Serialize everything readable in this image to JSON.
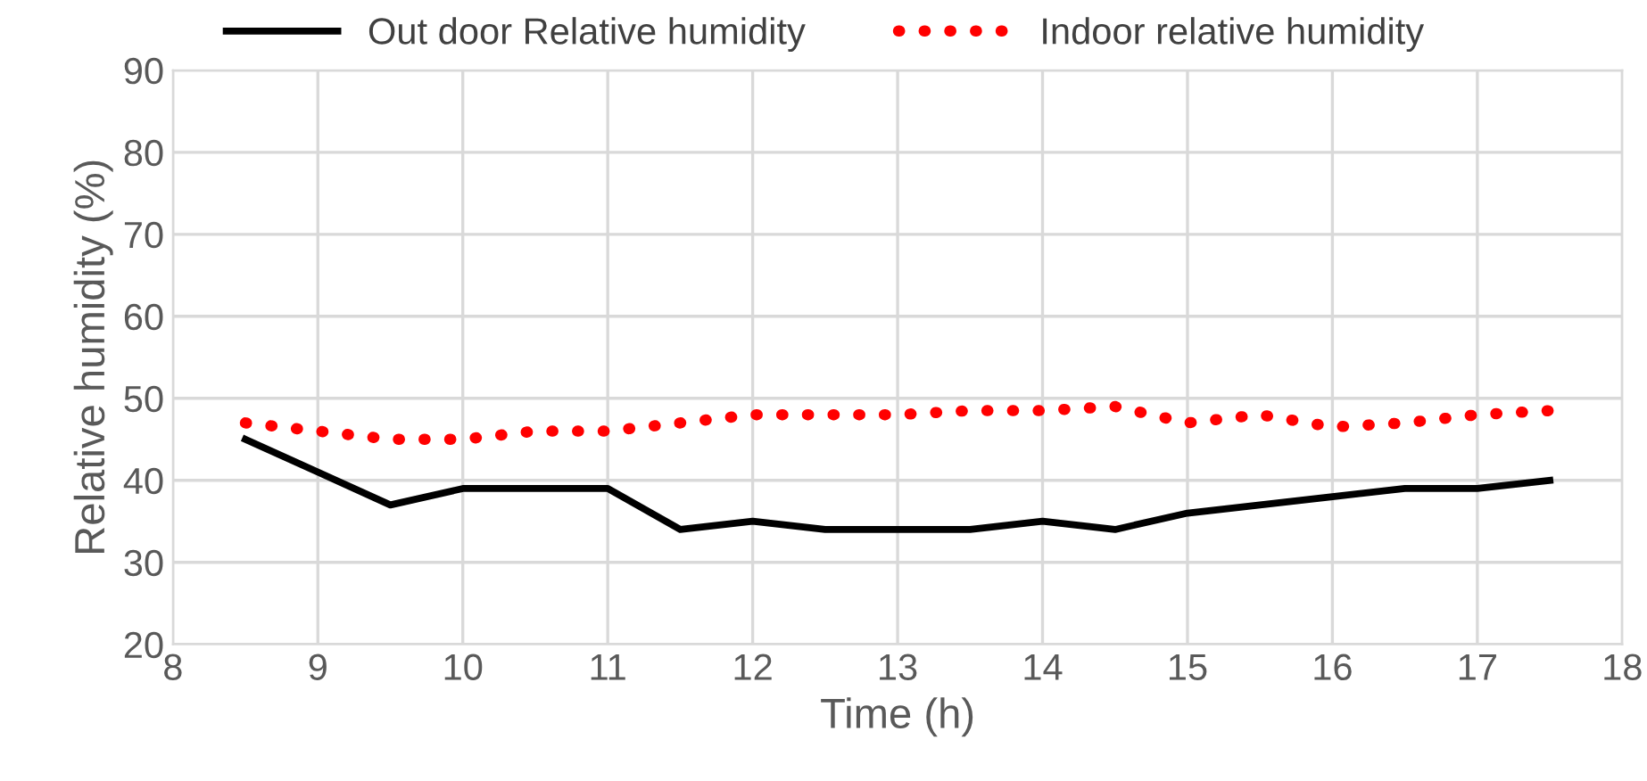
{
  "chart_data": {
    "type": "line",
    "xlabel": "Time (h)",
    "ylabel": "Relative humidity (%)",
    "x": [
      8.5,
      9,
      9.5,
      10,
      10.5,
      11,
      11.5,
      12,
      12.5,
      13,
      13.5,
      14,
      14.5,
      15,
      15.5,
      16,
      16.5,
      17,
      17.5
    ],
    "series": [
      {
        "name": "Out door Relative humidity",
        "color": "#000000",
        "line_style": "solid",
        "values": [
          45,
          41,
          37,
          39,
          39,
          39,
          34,
          35,
          34,
          34,
          34,
          35,
          34,
          36,
          37,
          38,
          39,
          39,
          40
        ]
      },
      {
        "name": "Indoor relative humidity",
        "color": "#ff0000",
        "line_style": "dotted",
        "values": [
          47,
          46,
          45,
          45,
          46,
          46,
          47,
          48,
          48,
          48,
          48.5,
          48.5,
          49,
          47,
          48,
          46.5,
          47,
          48,
          48.5
        ]
      }
    ],
    "xlim": [
      8,
      18
    ],
    "xticks": [
      8,
      9,
      10,
      11,
      12,
      13,
      14,
      15,
      16,
      17,
      18
    ],
    "ylim": [
      20,
      90
    ],
    "yticks": [
      20,
      30,
      40,
      50,
      60,
      70,
      80,
      90
    ],
    "grid": true,
    "legend": "top"
  }
}
